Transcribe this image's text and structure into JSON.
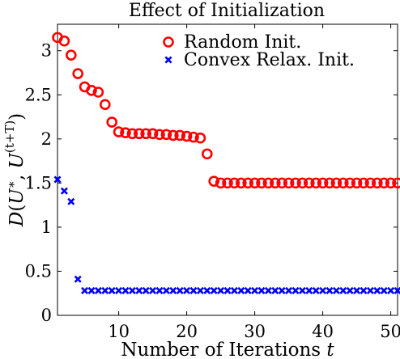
{
  "chart_data": {
    "type": "scatter",
    "title": "Effect of Initialization",
    "xlabel": "Number of Iterations t",
    "ylabel": "D(U*, U(t+T))",
    "xlim": [
      1,
      51
    ],
    "ylim": [
      0,
      3.3
    ],
    "xticks": [
      10,
      20,
      30,
      40,
      50
    ],
    "yticks": [
      0,
      0.5,
      1,
      1.5,
      2,
      2.5,
      3
    ],
    "ytick_labels": [
      "0",
      "0.5",
      "1",
      "1.5",
      "2",
      "2.5",
      "3"
    ],
    "grid": false,
    "legend_position": "top-right",
    "series": [
      {
        "name": "Random Init.",
        "marker": "circle",
        "color": "#ff0000",
        "x": [
          1,
          2,
          3,
          4,
          5,
          6,
          7,
          8,
          9,
          10,
          11,
          12,
          13,
          14,
          15,
          16,
          17,
          18,
          19,
          20,
          21,
          22,
          23,
          24,
          25,
          26,
          27,
          28,
          29,
          30,
          31,
          32,
          33,
          34,
          35,
          36,
          37,
          38,
          39,
          40,
          41,
          42,
          43,
          44,
          45,
          46,
          47,
          48,
          49,
          50,
          51
        ],
        "y": [
          3.15,
          3.11,
          2.95,
          2.74,
          2.59,
          2.55,
          2.53,
          2.39,
          2.19,
          2.08,
          2.07,
          2.06,
          2.06,
          2.06,
          2.06,
          2.05,
          2.05,
          2.04,
          2.04,
          2.03,
          2.02,
          2.01,
          1.83,
          1.52,
          1.5,
          1.5,
          1.5,
          1.5,
          1.5,
          1.5,
          1.5,
          1.5,
          1.5,
          1.5,
          1.5,
          1.5,
          1.5,
          1.5,
          1.5,
          1.5,
          1.5,
          1.5,
          1.5,
          1.5,
          1.5,
          1.5,
          1.5,
          1.5,
          1.5,
          1.5,
          1.5
        ]
      },
      {
        "name": "Convex Relax. Init.",
        "marker": "x",
        "color": "#0000ff",
        "x": [
          1,
          2,
          3,
          4,
          5,
          6,
          7,
          8,
          9,
          10,
          11,
          12,
          13,
          14,
          15,
          16,
          17,
          18,
          19,
          20,
          21,
          22,
          23,
          24,
          25,
          26,
          27,
          28,
          29,
          30,
          31,
          32,
          33,
          34,
          35,
          36,
          37,
          38,
          39,
          40,
          41,
          42,
          43,
          44,
          45,
          46,
          47,
          48,
          49,
          50,
          51
        ],
        "y": [
          1.54,
          1.41,
          1.29,
          0.41,
          0.28,
          0.28,
          0.28,
          0.28,
          0.28,
          0.28,
          0.28,
          0.28,
          0.28,
          0.28,
          0.28,
          0.28,
          0.28,
          0.28,
          0.28,
          0.28,
          0.28,
          0.28,
          0.28,
          0.28,
          0.28,
          0.28,
          0.28,
          0.28,
          0.28,
          0.28,
          0.28,
          0.28,
          0.28,
          0.28,
          0.28,
          0.28,
          0.28,
          0.28,
          0.28,
          0.28,
          0.28,
          0.28,
          0.28,
          0.28,
          0.28,
          0.28,
          0.28,
          0.28,
          0.28,
          0.28,
          0.28
        ]
      }
    ]
  }
}
